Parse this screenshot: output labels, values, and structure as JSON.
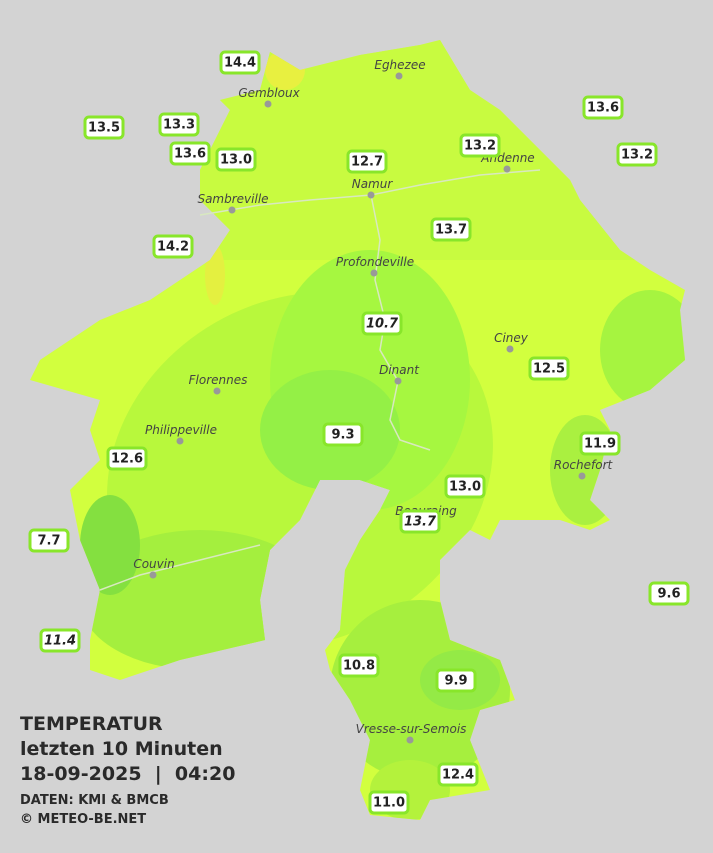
{
  "stations": [
    "14.4",
    "13.5",
    "13.3",
    "13.6",
    "13.0",
    "12.7",
    "13.2",
    "13.6",
    "13.2",
    "14.2",
    "13.7",
    "10.7",
    "12.5",
    "9.3",
    "11.9",
    "12.6",
    "13.0",
    "13.7",
    "7.7",
    "9.6",
    "11.4",
    "10.8",
    "9.9",
    "12.4",
    "11.0"
  ],
  "cities": [
    "Eghezee",
    "Gembloux",
    "Andenne",
    "Namur",
    "Sambreville",
    "Profondeville",
    "Ciney",
    "Dinant",
    "Florennes",
    "Philippeville",
    "Rochefort",
    "Beauraing",
    "Couvin",
    "Vresse-sur-Semois"
  ],
  "info": {
    "title": "TEMPERATUR",
    "period": "letzten 10 Minuten",
    "datetime": "18-09-2025  |  04:20",
    "source": "DATEN: KMI & BMCB",
    "copyright": "© METEO-BE.NET"
  }
}
